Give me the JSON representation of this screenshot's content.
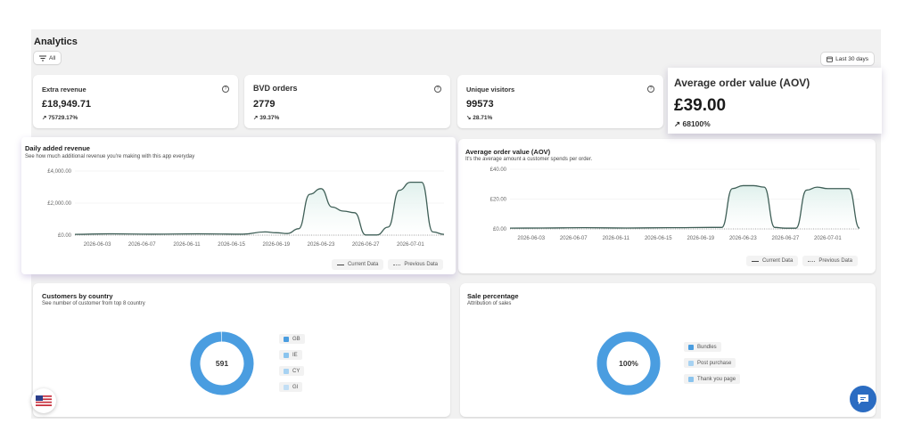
{
  "header": {
    "title": "Analytics",
    "filter_label": "All",
    "date_range_label": "Last 30 days"
  },
  "kpis": [
    {
      "title": "Extra revenue",
      "value": "£18,949.71",
      "change": "75729.17%",
      "direction": "up"
    },
    {
      "title": "BVD orders",
      "value": "2779",
      "change": "39.37%",
      "direction": "up"
    },
    {
      "title": "Unique visitors",
      "value": "99573",
      "change": "28.71%",
      "direction": "down"
    }
  ],
  "highlight_card": {
    "title": "Average order value (AOV)",
    "value": "£39.00",
    "change": "68100%",
    "direction": "up"
  },
  "legend": {
    "current": "Current Data",
    "previous": "Previous Data"
  },
  "chart_data": [
    {
      "type": "area",
      "title": "Daily added revenue",
      "subtitle": "See how much additional revenue you're making with this app everyday",
      "x_tick_labels": [
        "2026-06-03",
        "2026-06-07",
        "2026-06-11",
        "2026-06-15",
        "2026-06-19",
        "2026-06-23",
        "2026-06-27",
        "2026-07-01"
      ],
      "y_tick_labels": [
        "£4,000.00",
        "£2,000.00",
        "£0.00"
      ],
      "ylim": [
        0,
        4000
      ],
      "x": [
        "2026-06-01",
        "2026-06-04",
        "2026-06-08",
        "2026-06-12",
        "2026-06-16",
        "2026-06-18",
        "2026-06-19",
        "2026-06-20",
        "2026-06-21",
        "2026-06-22",
        "2026-06-23",
        "2026-06-24",
        "2026-06-25",
        "2026-06-26",
        "2026-06-27",
        "2026-06-28",
        "2026-06-29",
        "2026-06-30",
        "2026-07-01",
        "2026-07-02",
        "2026-07-03",
        "2026-07-04"
      ],
      "series": [
        {
          "values": [
            50,
            80,
            60,
            80,
            60,
            200,
            150,
            100,
            400,
            2550,
            2900,
            1750,
            1500,
            1400,
            10,
            10,
            500,
            2800,
            3300,
            3300,
            200,
            50
          ]
        }
      ]
    },
    {
      "type": "area",
      "title": "Average order value (AOV)",
      "subtitle": "It's the average amount a customer spends per order.",
      "x_tick_labels": [
        "2026-06-03",
        "2026-06-07",
        "2026-06-11",
        "2026-06-15",
        "2026-06-19",
        "2026-06-23",
        "2026-06-27",
        "2026-07-01"
      ],
      "y_tick_labels": [
        "£40.00",
        "£20.00",
        "£0.00"
      ],
      "ylim": [
        0,
        40
      ],
      "x": [
        "2026-06-01",
        "2026-06-04",
        "2026-06-08",
        "2026-06-12",
        "2026-06-16",
        "2026-06-20",
        "2026-06-21",
        "2026-06-22",
        "2026-06-23",
        "2026-06-24",
        "2026-06-25",
        "2026-06-26",
        "2026-06-27",
        "2026-06-28",
        "2026-06-29",
        "2026-06-30",
        "2026-07-01",
        "2026-07-02",
        "2026-07-03",
        "2026-07-04"
      ],
      "series": [
        {
          "values": [
            0.5,
            0.6,
            0.8,
            0.6,
            0.8,
            1,
            1,
            27,
            29,
            29,
            28,
            1,
            0.5,
            0.5,
            26,
            28,
            27,
            27,
            27,
            0.5
          ]
        }
      ]
    },
    {
      "type": "pie",
      "title": "Customers by country",
      "subtitle": "See number of customer from top 8 country",
      "center_label": "591",
      "categories": [
        "GB",
        "IE",
        "CY",
        "GI"
      ],
      "values": [
        588,
        1,
        1,
        1
      ],
      "colors": [
        "#4a9de0",
        "#8ac4ee",
        "#a7d2f2",
        "#c2def5"
      ]
    },
    {
      "type": "pie",
      "title": "Sale percentage",
      "subtitle": "Attribution of sales",
      "center_label": "100%",
      "categories": [
        "Bundles",
        "Post purchase",
        "Thank you page"
      ],
      "values": [
        100,
        0,
        0
      ],
      "colors": [
        "#4a9de0",
        "#a7d2f2",
        "#8ac4ee"
      ]
    }
  ],
  "colors": {
    "line": "#3f5f57",
    "fill_top": "#dff0ec",
    "donut": "#4a9de0",
    "accent_chat": "#2b6cc2"
  }
}
